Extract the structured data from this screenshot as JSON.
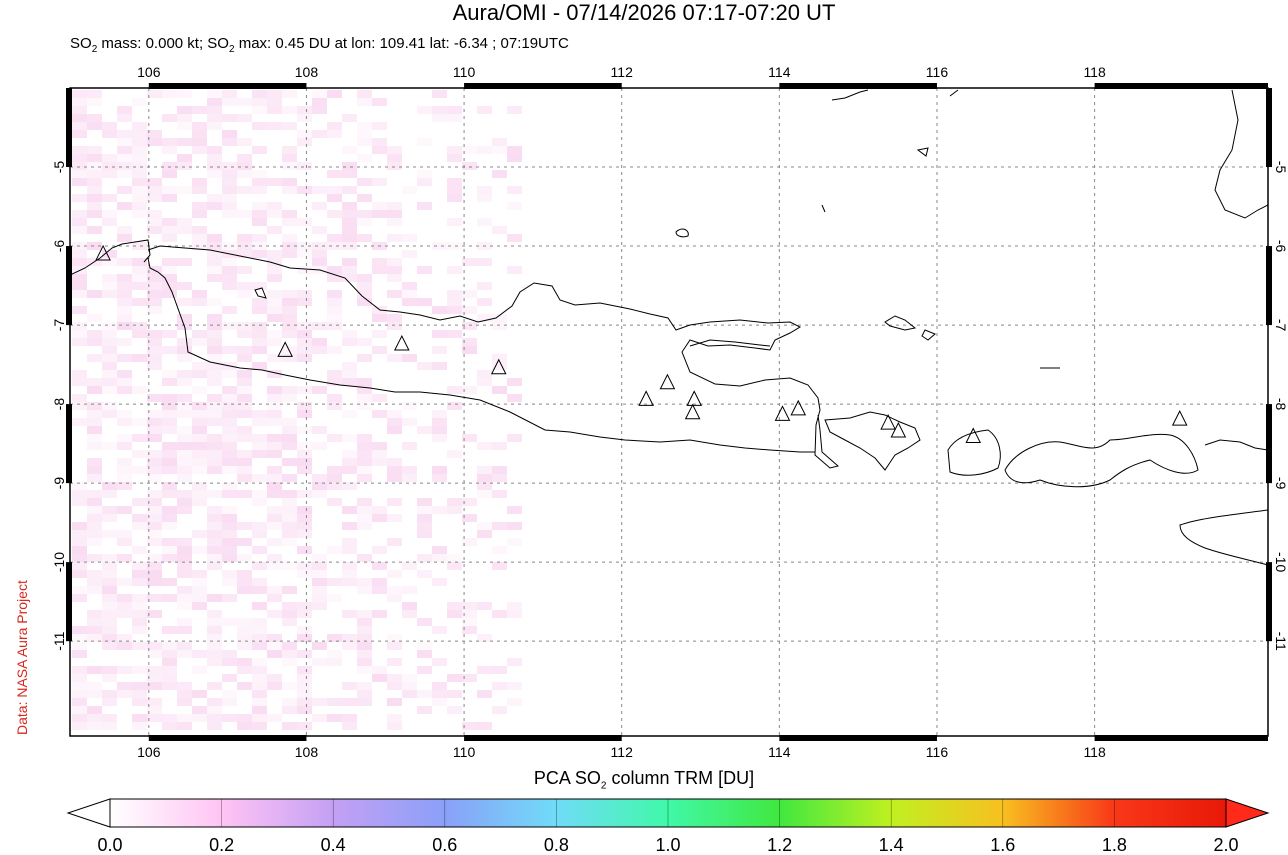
{
  "header": {
    "title": "Aura/OMI - 07/14/2026 07:17-07:20 UT",
    "subtitle_prefix": "SO",
    "subtitle_sub": "2",
    "subtitle_mid": " mass: 0.000 kt; SO",
    "subtitle_sub2": "2",
    "subtitle_rest": " max: 0.45 DU at lon: 109.41 lat: -6.34 ; 07:19UTC"
  },
  "credit": "Data: NASA Aura Project",
  "map": {
    "lon_ticks": [
      "106",
      "108",
      "110",
      "112",
      "114",
      "116",
      "118"
    ],
    "lat_ticks": [
      "-5",
      "-6",
      "-7",
      "-8",
      "-9",
      "-10",
      "-11"
    ],
    "lon_range": [
      105,
      120.2
    ],
    "lat_range": [
      -12.2,
      -4.0
    ],
    "volcanoes_lonlat": [
      [
        105.42,
        -6.1
      ],
      [
        107.73,
        -7.32
      ],
      [
        109.21,
        -7.24
      ],
      [
        110.44,
        -7.54
      ],
      [
        112.31,
        -7.94
      ],
      [
        112.58,
        -7.73
      ],
      [
        112.92,
        -7.94
      ],
      [
        112.9,
        -8.11
      ],
      [
        114.04,
        -8.13
      ],
      [
        114.24,
        -8.06
      ],
      [
        115.38,
        -8.24
      ],
      [
        115.51,
        -8.34
      ],
      [
        116.46,
        -8.41
      ],
      [
        119.08,
        -8.19
      ]
    ],
    "grid_style": "dashed",
    "colors": {
      "coast": "#000000",
      "grid": "#888888",
      "so2_low": "#f8d0ee"
    }
  },
  "colorbar": {
    "title_prefix": "PCA SO",
    "title_sub": "2",
    "title_rest": " column TRM [DU]",
    "ticks": [
      "0.0",
      "0.2",
      "0.4",
      "0.6",
      "0.8",
      "1.0",
      "1.2",
      "1.4",
      "1.6",
      "1.8",
      "2.0"
    ],
    "range": [
      0.0,
      2.0
    ],
    "stops": [
      "#ffffff",
      "#ffc4f4",
      "#c4a0f4",
      "#8aa0f8",
      "#70dcf8",
      "#40f8a8",
      "#40e840",
      "#c0f020",
      "#f8c020",
      "#f83818",
      "#e81808"
    ]
  }
}
